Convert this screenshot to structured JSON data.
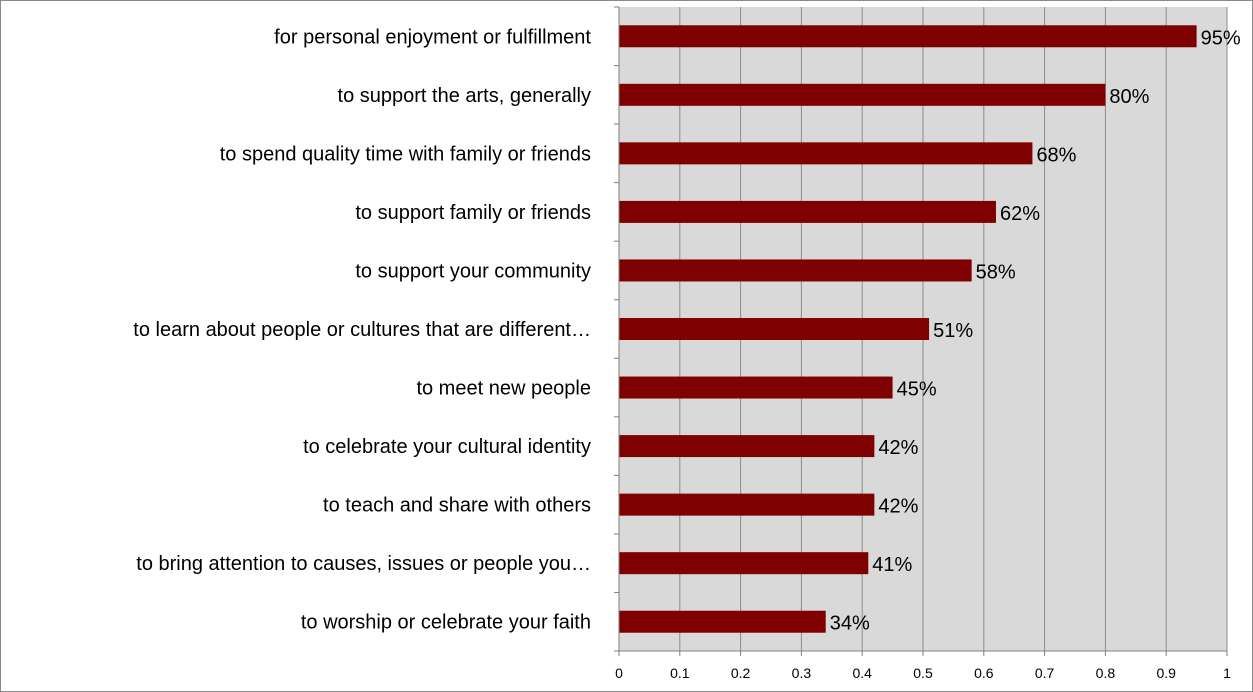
{
  "colors": {
    "bar": "#7f0000",
    "plot_background": "#d9d9d9",
    "gridline": "#8c8c8c",
    "axis": "#7f7f7f",
    "text": "#000000"
  },
  "chart_data": {
    "type": "bar",
    "orientation": "horizontal",
    "categories": [
      "for personal enjoyment or fulfillment",
      "to support the arts, generally",
      "to spend quality time with family or friends",
      "to support family or friends",
      "to support your community",
      "to learn about people or cultures that are different…",
      "to meet new people",
      "to celebrate your cultural identity",
      "to teach and share with others",
      "to bring attention to causes, issues or people you…",
      "to worship or celebrate your faith"
    ],
    "values": [
      0.95,
      0.8,
      0.68,
      0.62,
      0.58,
      0.51,
      0.45,
      0.42,
      0.42,
      0.41,
      0.34
    ],
    "data_labels": [
      "95%",
      "80%",
      "68%",
      "62%",
      "58%",
      "51%",
      "45%",
      "42%",
      "42%",
      "41%",
      "34%"
    ],
    "x_ticks": [
      "0",
      "0.1",
      "0.2",
      "0.3",
      "0.4",
      "0.5",
      "0.6",
      "0.7",
      "0.8",
      "0.9",
      "1"
    ],
    "xlim": [
      0,
      1
    ],
    "grid": "vertical",
    "legend": "none"
  }
}
